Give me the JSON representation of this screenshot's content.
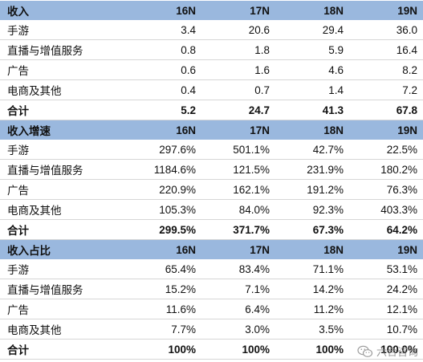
{
  "sections": [
    {
      "header": {
        "label": "收入",
        "cols": [
          "16N",
          "17N",
          "18N",
          "19N"
        ]
      },
      "rows": [
        {
          "label": "手游",
          "values": [
            "3.4",
            "20.6",
            "29.4",
            "36.0"
          ]
        },
        {
          "label": "直播与增值服务",
          "values": [
            "0.8",
            "1.8",
            "5.9",
            "16.4"
          ]
        },
        {
          "label": "广告",
          "values": [
            "0.6",
            "1.6",
            "4.6",
            "8.2"
          ]
        },
        {
          "label": "电商及其他",
          "values": [
            "0.4",
            "0.7",
            "1.4",
            "7.2"
          ]
        }
      ],
      "total": {
        "label": "合计",
        "values": [
          "5.2",
          "24.7",
          "41.3",
          "67.8"
        ]
      }
    },
    {
      "header": {
        "label": "收入增速",
        "cols": [
          "16N",
          "17N",
          "18N",
          "19N"
        ]
      },
      "rows": [
        {
          "label": "手游",
          "values": [
            "297.6%",
            "501.1%",
            "42.7%",
            "22.5%"
          ]
        },
        {
          "label": "直播与增值服务",
          "values": [
            "1184.6%",
            "121.5%",
            "231.9%",
            "180.2%"
          ]
        },
        {
          "label": "广告",
          "values": [
            "220.9%",
            "162.1%",
            "191.2%",
            "76.3%"
          ]
        },
        {
          "label": "电商及其他",
          "values": [
            "105.3%",
            "84.0%",
            "92.3%",
            "403.3%"
          ]
        }
      ],
      "total": {
        "label": "合计",
        "values": [
          "299.5%",
          "371.7%",
          "67.3%",
          "64.2%"
        ]
      }
    },
    {
      "header": {
        "label": "收入占比",
        "cols": [
          "16N",
          "17N",
          "18N",
          "19N"
        ]
      },
      "rows": [
        {
          "label": "手游",
          "values": [
            "65.4%",
            "83.4%",
            "71.1%",
            "53.1%"
          ]
        },
        {
          "label": "直播与增值服务",
          "values": [
            "15.2%",
            "7.1%",
            "14.2%",
            "24.2%"
          ]
        },
        {
          "label": "广告",
          "values": [
            "11.6%",
            "6.4%",
            "11.2%",
            "12.1%"
          ]
        },
        {
          "label": "电商及其他",
          "values": [
            "7.7%",
            "3.0%",
            "3.5%",
            "10.7%"
          ]
        }
      ],
      "total": {
        "label": "合计",
        "values": [
          "100%",
          "100%",
          "100%",
          "100.0%"
        ]
      }
    }
  ],
  "watermark": {
    "text": "六合咨询",
    "icon": "wechat-icon"
  },
  "colors": {
    "header_bg": "#9ab8de",
    "row_rule": "#d6d6d6"
  }
}
